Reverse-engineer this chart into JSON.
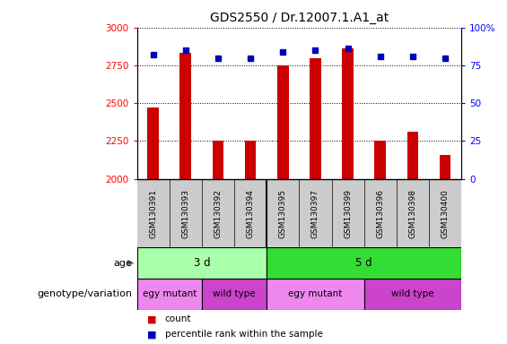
{
  "title": "GDS2550 / Dr.12007.1.A1_at",
  "samples": [
    "GSM130391",
    "GSM130393",
    "GSM130392",
    "GSM130394",
    "GSM130395",
    "GSM130397",
    "GSM130399",
    "GSM130396",
    "GSM130398",
    "GSM130400"
  ],
  "counts": [
    2470,
    2830,
    2250,
    2250,
    2750,
    2800,
    2860,
    2250,
    2310,
    2160
  ],
  "percentile_ranks": [
    82,
    85,
    80,
    80,
    84,
    85,
    86,
    81,
    81,
    80
  ],
  "ylim_left": [
    2000,
    3000
  ],
  "ylim_right": [
    0,
    100
  ],
  "yticks_left": [
    2000,
    2250,
    2500,
    2750,
    3000
  ],
  "yticks_right": [
    0,
    25,
    50,
    75,
    100
  ],
  "bar_color": "#cc0000",
  "dot_color": "#0000bb",
  "bar_bottom": 2000,
  "age_groups": [
    {
      "label": "3 d",
      "start": 0,
      "end": 4,
      "color": "#aaffaa"
    },
    {
      "label": "5 d",
      "start": 4,
      "end": 10,
      "color": "#33dd33"
    }
  ],
  "genotype_groups": [
    {
      "label": "egy mutant",
      "start": 0,
      "end": 2,
      "color": "#ee88ee"
    },
    {
      "label": "wild type",
      "start": 2,
      "end": 4,
      "color": "#cc44cc"
    },
    {
      "label": "egy mutant",
      "start": 4,
      "end": 7,
      "color": "#ee88ee"
    },
    {
      "label": "wild type",
      "start": 7,
      "end": 10,
      "color": "#cc44cc"
    }
  ],
  "legend_count_color": "#cc0000",
  "legend_pct_color": "#0000bb",
  "left_label_color": "#333333",
  "sample_bg_color": "#cccccc",
  "grid_color": "black",
  "title_fontsize": 10
}
